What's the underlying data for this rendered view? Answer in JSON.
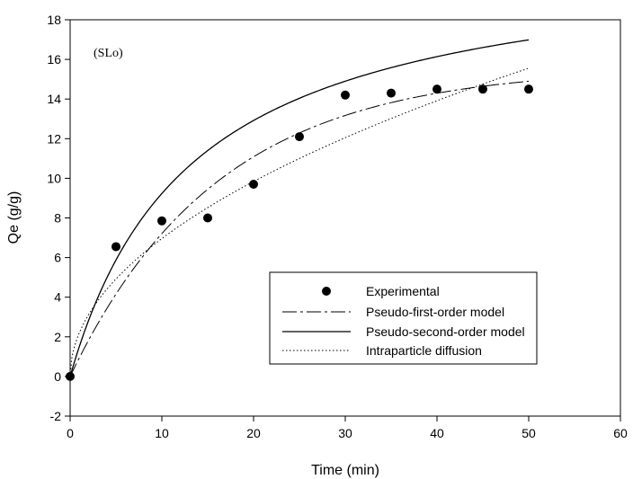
{
  "chart_data": {
    "type": "scatter",
    "title": "",
    "annotation": "(SLo)",
    "xlabel": "Time (min)",
    "ylabel": "Qe (g/g)",
    "xlim": [
      0,
      60
    ],
    "ylim": [
      -2,
      18
    ],
    "xticks": [
      0,
      10,
      20,
      30,
      40,
      50,
      60
    ],
    "yticks": [
      -2,
      0,
      2,
      4,
      6,
      8,
      10,
      12,
      14,
      16,
      18
    ],
    "grid": false,
    "legend_position": "lower-right",
    "experimental": {
      "name": "Experimental",
      "x": [
        0,
        5,
        10,
        15,
        20,
        25,
        30,
        35,
        40,
        45,
        50
      ],
      "y": [
        0.0,
        6.55,
        7.85,
        8.0,
        9.7,
        12.1,
        14.2,
        14.3,
        14.5,
        14.5,
        14.5
      ]
    },
    "fits": [
      {
        "name": "Pseudo-first-order model",
        "model": "pfo",
        "qe": 15.6,
        "k": 0.062,
        "dash": "16 4 3 4"
      },
      {
        "name": "Pseudo-second-order model",
        "model": "pso",
        "qe": 21.5,
        "k": 0.0035,
        "dash": "none"
      },
      {
        "name": "Intraparticle diffusion",
        "model": "ipd",
        "kid": 2.2,
        "c": 0.0,
        "dash": "1.5 2.5"
      }
    ]
  }
}
